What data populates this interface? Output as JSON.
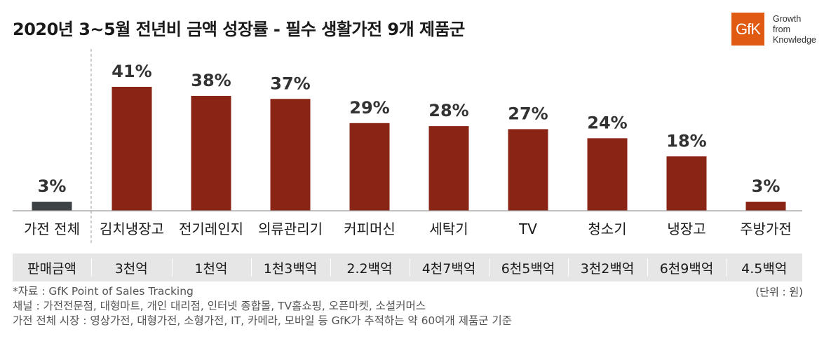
{
  "title": "2020년 3~5월 전년비 금액 성장률 - 필수 생활가전 9개 제품군",
  "logo": {
    "mark": "GfK",
    "tagline": [
      "Growth",
      "from",
      "Knowledge"
    ],
    "color": "#e05a12"
  },
  "chart_data": {
    "type": "bar",
    "title": "2020년 3~5월 전년비 금액 성장률 - 필수 생활가전 9개 제품군",
    "categories": [
      "가전 전체",
      "김치냉장고",
      "전기레인지",
      "의류관리기",
      "커피머신",
      "세탁기",
      "TV",
      "청소기",
      "냉장고",
      "주방가전"
    ],
    "values": [
      3,
      41,
      38,
      37,
      29,
      28,
      27,
      24,
      18,
      3
    ],
    "value_labels": [
      "3%",
      "41%",
      "38%",
      "37%",
      "29%",
      "28%",
      "27%",
      "24%",
      "18%",
      "3%"
    ],
    "colors": [
      "#3d4245",
      "#8a2414",
      "#8a2414",
      "#8a2414",
      "#8a2414",
      "#8a2414",
      "#8a2414",
      "#8a2414",
      "#8a2414",
      "#8a2414"
    ],
    "ylim": [
      0,
      41
    ],
    "xlabel": "",
    "ylabel": "",
    "grid": false,
    "legend": "none"
  },
  "sales_row": {
    "header": "판매금액",
    "values": [
      "3천억",
      "1천억",
      "1천3백억",
      "2.2백억",
      "4천7백억",
      "6천5백억",
      "3천2백억",
      "6천9백억",
      "4.5백억"
    ]
  },
  "unit": "(단위 : 원)",
  "notes": [
    "*자료 : GfK Point of Sales Tracking",
    "  채널 : 가전전문점, 대형마트, 개인 대리점, 인터넷 종합몰, TV홈쇼핑, 오픈마켓, 소셜커머스",
    "  가전 전체 시장 : 영상가전, 대형가전, 소형가전, IT, 카메라, 모바일 등 GfK가 추적하는 약 60여개 제품군 기준"
  ]
}
